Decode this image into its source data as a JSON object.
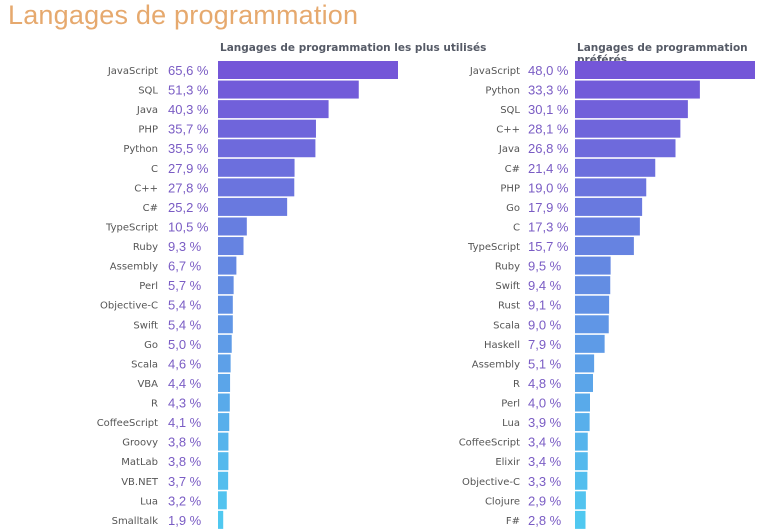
{
  "title": "Langages de programmation",
  "colors": {
    "title": "#e6a96e",
    "bar_top": "#7456d8",
    "bar_bottom": "#50c8f0",
    "value_text": "#7a5cc4"
  },
  "chart_data": [
    {
      "type": "bar",
      "orientation": "horizontal",
      "title": "Langages de programmation les plus utilisés",
      "unit": "%",
      "categories": [
        "JavaScript",
        "SQL",
        "Java",
        "PHP",
        "Python",
        "C",
        "C++",
        "C#",
        "TypeScript",
        "Ruby",
        "Assembly",
        "Perl",
        "Objective-C",
        "Swift",
        "Go",
        "Scala",
        "VBA",
        "R",
        "CoffeeScript",
        "Groovy",
        "MatLab",
        "VB.NET",
        "Lua",
        "Smalltalk"
      ],
      "values": [
        65.6,
        51.3,
        40.3,
        35.7,
        35.5,
        27.9,
        27.8,
        25.2,
        10.5,
        9.3,
        6.7,
        5.7,
        5.4,
        5.4,
        5.0,
        4.6,
        4.4,
        4.3,
        4.1,
        3.8,
        3.8,
        3.7,
        3.2,
        1.9
      ],
      "labels": [
        "65,6 %",
        "51,3 %",
        "40,3 %",
        "35,7 %",
        "35,5 %",
        "27,9 %",
        "27,8 %",
        "25,2 %",
        "10,5 %",
        "9,3 %",
        "6,7 %",
        "5,7 %",
        "5,4 %",
        "5,4 %",
        "5,0 %",
        "4,6 %",
        "4,4 %",
        "4,3 %",
        "4,1 %",
        "3,8 %",
        "3,8 %",
        "3,7 %",
        "3,2 %",
        "1,9 %"
      ],
      "grid": false
    },
    {
      "type": "bar",
      "orientation": "horizontal",
      "title": "Langages de programmation préférés",
      "unit": "%",
      "categories": [
        "JavaScript",
        "Python",
        "SQL",
        "C++",
        "Java",
        "C#",
        "PHP",
        "Go",
        "C",
        "TypeScript",
        "Ruby",
        "Swift",
        "Rust",
        "Scala",
        "Haskell",
        "Assembly",
        "R",
        "Perl",
        "Lua",
        "CoffeeScript",
        "Elixir",
        "Objective-C",
        "Clojure",
        "F#"
      ],
      "values": [
        48.0,
        33.3,
        30.1,
        28.1,
        26.8,
        21.4,
        19.0,
        17.9,
        17.3,
        15.7,
        9.5,
        9.4,
        9.1,
        9.0,
        7.9,
        5.1,
        4.8,
        4.0,
        3.9,
        3.4,
        3.4,
        3.3,
        2.9,
        2.8
      ],
      "labels": [
        "48,0 %",
        "33,3 %",
        "30,1 %",
        "28,1 %",
        "26,8 %",
        "21,4 %",
        "19,0 %",
        "17,9 %",
        "17,3 %",
        "15,7 %",
        "9,5 %",
        "9,4 %",
        "9,1 %",
        "9,0 %",
        "7,9 %",
        "5,1 %",
        "4,8 %",
        "4,0 %",
        "3,9 %",
        "3,4 %",
        "3,4 %",
        "3,3 %",
        "2,9 %",
        "2,8 %"
      ],
      "grid": false
    }
  ]
}
